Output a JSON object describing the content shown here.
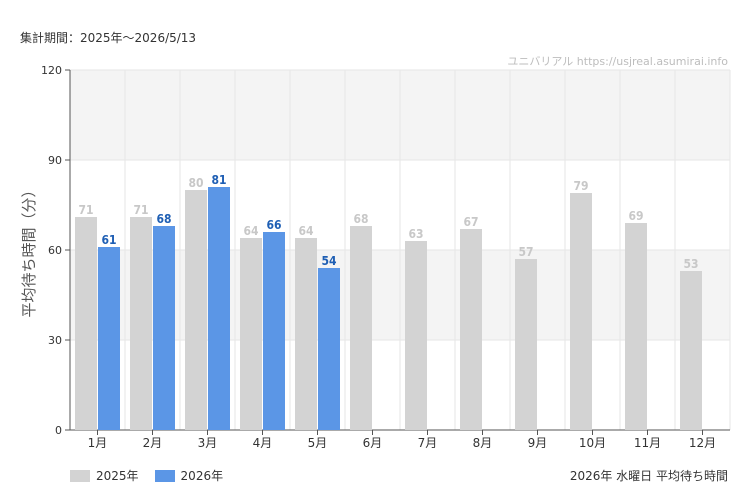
{
  "period_label": "集計期間：2025年〜2026/5/13",
  "watermark": "ユニバリアル  https://usjreal.asumirai.info",
  "footer_title": "2026年 水曜日 平均待ち時間",
  "colors": {
    "series_2025": "#d3d3d3",
    "series_2026": "#5b96e6",
    "label_2025": "#c8c8c8",
    "label_2026": "#1f5fb4",
    "band": "#f4f4f4",
    "grid": "#e6e6e6"
  },
  "chart_data": {
    "type": "bar",
    "ylabel": "平均待ち時間（分）",
    "ylim": [
      0,
      120
    ],
    "yticks": [
      0,
      30,
      60,
      90,
      120
    ],
    "categories": [
      "1月",
      "2月",
      "3月",
      "4月",
      "5月",
      "6月",
      "7月",
      "8月",
      "9月",
      "10月",
      "11月",
      "12月"
    ],
    "series": [
      {
        "name": "2025年",
        "values": [
          71,
          71,
          80,
          64,
          64,
          68,
          63,
          67,
          57,
          79,
          69,
          53
        ]
      },
      {
        "name": "2026年",
        "values": [
          61,
          68,
          81,
          66,
          54,
          null,
          null,
          null,
          null,
          null,
          null,
          null
        ]
      }
    ],
    "legend_position": "bottom-left",
    "grid": true
  }
}
